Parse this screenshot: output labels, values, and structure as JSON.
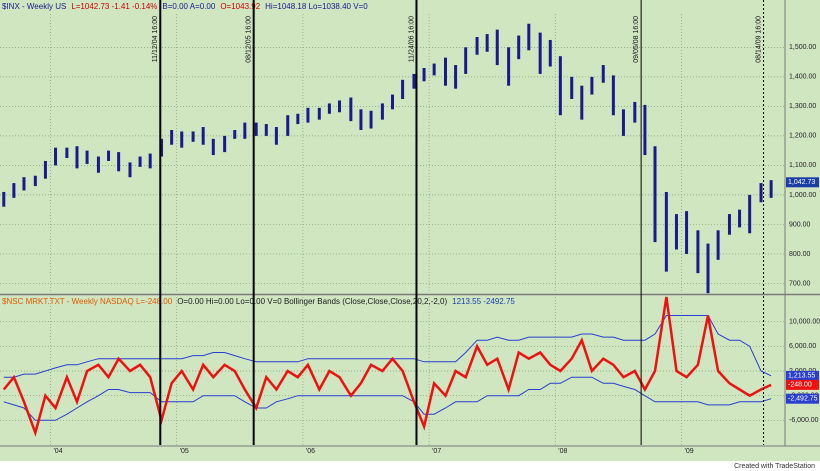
{
  "chart_data": [
    {
      "type": "ohlc",
      "header": [
        {
          "text": "$INX - Weekly  US",
          "color": "#1a1a8c"
        },
        {
          "text": "L=1042.73  -1.41  -0.14%",
          "color": "#cc0000"
        },
        {
          "text": "B=0.00  A=0.00",
          "color": "#1a1a8c"
        },
        {
          "text": "O=1043.92",
          "color": "#cc0000"
        },
        {
          "text": "Hi=1048.18  Lo=1038.40  V=0",
          "color": "#1a1a8c"
        }
      ],
      "color": "#1a1a8c",
      "x": [
        2003.63,
        2003.71,
        2003.79,
        2003.88,
        2003.96,
        2004.04,
        2004.13,
        2004.21,
        2004.29,
        2004.38,
        2004.46,
        2004.54,
        2004.63,
        2004.71,
        2004.79,
        2004.88,
        2004.96,
        2005.04,
        2005.13,
        2005.21,
        2005.29,
        2005.38,
        2005.46,
        2005.54,
        2005.63,
        2005.71,
        2005.79,
        2005.88,
        2005.96,
        2006.04,
        2006.13,
        2006.21,
        2006.29,
        2006.38,
        2006.46,
        2006.54,
        2006.63,
        2006.71,
        2006.79,
        2006.88,
        2006.96,
        2007.04,
        2007.13,
        2007.21,
        2007.29,
        2007.38,
        2007.46,
        2007.54,
        2007.63,
        2007.71,
        2007.79,
        2007.88,
        2007.96,
        2008.04,
        2008.13,
        2008.21,
        2008.29,
        2008.38,
        2008.46,
        2008.54,
        2008.63,
        2008.71,
        2008.79,
        2008.88,
        2008.96,
        2009.04,
        2009.13,
        2009.21,
        2009.29,
        2009.38,
        2009.46,
        2009.54,
        2009.63,
        2009.71
      ],
      "low": [
        960,
        990,
        1015,
        1030,
        1055,
        1100,
        1125,
        1090,
        1105,
        1075,
        1115,
        1080,
        1060,
        1095,
        1090,
        1130,
        1170,
        1160,
        1180,
        1170,
        1135,
        1145,
        1190,
        1190,
        1200,
        1200,
        1170,
        1200,
        1240,
        1245,
        1255,
        1275,
        1280,
        1250,
        1220,
        1225,
        1255,
        1290,
        1325,
        1360,
        1385,
        1405,
        1370,
        1360,
        1410,
        1475,
        1485,
        1440,
        1370,
        1460,
        1490,
        1410,
        1435,
        1270,
        1325,
        1255,
        1340,
        1380,
        1270,
        1200,
        1245,
        1135,
        840,
        740,
        815,
        800,
        735,
        667,
        780,
        865,
        890,
        870,
        975,
        990
      ],
      "high": [
        1010,
        1040,
        1060,
        1065,
        1115,
        1160,
        1160,
        1165,
        1150,
        1130,
        1150,
        1145,
        1110,
        1130,
        1140,
        1190,
        1220,
        1215,
        1215,
        1230,
        1190,
        1200,
        1220,
        1245,
        1245,
        1240,
        1230,
        1270,
        1275,
        1295,
        1295,
        1310,
        1320,
        1330,
        1290,
        1285,
        1310,
        1340,
        1390,
        1410,
        1430,
        1445,
        1465,
        1440,
        1500,
        1535,
        1545,
        1560,
        1500,
        1540,
        1580,
        1550,
        1525,
        1470,
        1400,
        1370,
        1400,
        1440,
        1405,
        1290,
        1315,
        1305,
        1165,
        1010,
        935,
        945,
        880,
        835,
        880,
        935,
        950,
        1000,
        1040,
        1050
      ],
      "last": {
        "value": 1042.73,
        "label": "1,042.73"
      },
      "xlim": [
        2003.6,
        2009.82
      ],
      "ylim": [
        671,
        1613
      ],
      "yticks": [
        {
          "value": 700,
          "label": "700.00"
        },
        {
          "value": 800,
          "label": "800.00"
        },
        {
          "value": 900,
          "label": "900.00"
        },
        {
          "value": 1000,
          "label": "1,000.00"
        },
        {
          "value": 1100,
          "label": "1,100.00"
        },
        {
          "value": 1200,
          "label": "1,200.00"
        },
        {
          "value": 1300,
          "label": "1,300.00"
        },
        {
          "value": 1400,
          "label": "1,400.00"
        },
        {
          "value": 1500,
          "label": "1,500.00"
        }
      ],
      "grid": true,
      "annotations": [
        {
          "text": "11/12/04 16:00",
          "x": 2004.87,
          "style": "thick"
        },
        {
          "text": "08/12/05 16:00",
          "x": 2005.61,
          "style": "thick"
        },
        {
          "text": "11/24/06 16:00",
          "x": 2006.9,
          "style": "thick"
        },
        {
          "text": "09/05/08 16:00",
          "x": 2008.68,
          "style": "thin"
        },
        {
          "text": "08/14/09 16:00",
          "x": 2009.65,
          "style": "dashed"
        }
      ]
    },
    {
      "type": "line",
      "header": [
        {
          "text": "$NSC MRKT.TXT - Weekly  NASDAQ  L=-248.00",
          "color": "#e05a00"
        },
        {
          "text": "O=0.00  Hi=0.00  Lo=0.00  V=0  Bollinger Bands (Close,Close,Close,20,2,-2,0)",
          "color": "#1a1a1a"
        },
        {
          "text": "1213.55  -2492.75",
          "color": "#1a3ea8"
        }
      ],
      "x": [
        2003.63,
        2003.71,
        2003.79,
        2003.88,
        2003.96,
        2004.04,
        2004.13,
        2004.21,
        2004.29,
        2004.38,
        2004.46,
        2004.54,
        2004.63,
        2004.71,
        2004.79,
        2004.88,
        2004.96,
        2005.04,
        2005.13,
        2005.21,
        2005.29,
        2005.38,
        2005.46,
        2005.54,
        2005.63,
        2005.71,
        2005.79,
        2005.88,
        2005.96,
        2006.04,
        2006.13,
        2006.21,
        2006.29,
        2006.38,
        2006.46,
        2006.54,
        2006.63,
        2006.71,
        2006.79,
        2006.88,
        2006.96,
        2007.04,
        2007.13,
        2007.21,
        2007.29,
        2007.38,
        2007.46,
        2007.54,
        2007.63,
        2007.71,
        2007.79,
        2007.88,
        2007.96,
        2008.04,
        2008.13,
        2008.21,
        2008.29,
        2008.38,
        2008.46,
        2008.54,
        2008.63,
        2008.71,
        2008.79,
        2008.88,
        2008.96,
        2009.04,
        2009.13,
        2009.21,
        2009.29,
        2009.38,
        2009.46,
        2009.54,
        2009.63,
        2009.71
      ],
      "series": [
        {
          "color": "#2a3fd0",
          "width": 1,
          "last_label": "1,213.55",
          "values": [
            1000,
            1000,
            1500,
            1500,
            2000,
            2500,
            3000,
            3000,
            3500,
            4000,
            4000,
            4000,
            4000,
            4000,
            4000,
            4000,
            4000,
            4000,
            4500,
            4500,
            5000,
            5000,
            4500,
            4000,
            3500,
            3500,
            3500,
            3500,
            3500,
            4000,
            4000,
            4000,
            4000,
            4000,
            4000,
            4000,
            4000,
            4000,
            4000,
            4000,
            3500,
            3500,
            3500,
            3500,
            5000,
            7000,
            7000,
            7500,
            7000,
            7000,
            7500,
            7500,
            7500,
            7500,
            7500,
            8000,
            8000,
            7500,
            7500,
            7000,
            7000,
            7000,
            8000,
            11000,
            11000,
            11000,
            11000,
            11000,
            8000,
            7000,
            7000,
            6000,
            2000,
            1213.55
          ]
        },
        {
          "color": "#2a3fd0",
          "width": 1,
          "last_label": "-2,492.75",
          "values": [
            -3000,
            -3500,
            -4000,
            -6000,
            -6000,
            -6000,
            -5000,
            -4000,
            -3000,
            -2000,
            -1000,
            -1000,
            -1500,
            -1500,
            -1500,
            -3000,
            -3000,
            -3000,
            -3000,
            -2000,
            -2000,
            -2000,
            -2000,
            -3000,
            -4000,
            -4000,
            -3000,
            -2500,
            -2000,
            -2000,
            -2000,
            -2000,
            -2000,
            -2000,
            -2000,
            -2000,
            -2000,
            -2000,
            -2000,
            -3000,
            -5000,
            -5000,
            -4000,
            -3000,
            -3000,
            -3000,
            -2000,
            -2000,
            -2000,
            -2000,
            -1000,
            -1000,
            0,
            0,
            1000,
            1000,
            1000,
            0,
            0,
            -500,
            -1000,
            -2000,
            -3000,
            -3000,
            -3000,
            -3000,
            -3000,
            -3500,
            -3500,
            -3500,
            -3000,
            -3000,
            -3000,
            -2492.75
          ]
        },
        {
          "color": "#ee1111",
          "width": 2.5,
          "last_label": "-248.00",
          "values": [
            -1000,
            1000,
            -3000,
            -8000,
            -2000,
            -4000,
            1000,
            -3000,
            2000,
            3000,
            1000,
            4000,
            2000,
            3000,
            1000,
            -6000,
            0,
            2000,
            -1000,
            3000,
            1000,
            3000,
            2000,
            -1000,
            -4000,
            1000,
            -1000,
            2000,
            1000,
            3000,
            -1000,
            2000,
            1000,
            -2000,
            0,
            3000,
            2000,
            4000,
            2000,
            -3000,
            -7000,
            0,
            -2000,
            2000,
            1000,
            6000,
            3000,
            4000,
            -1000,
            5000,
            4000,
            5000,
            3000,
            2000,
            4000,
            7000,
            2000,
            4000,
            3000,
            1000,
            2000,
            -1000,
            2000,
            14000,
            2000,
            1000,
            3000,
            11000,
            2000,
            0,
            -1000,
            -2000,
            -1000,
            -248
          ]
        }
      ],
      "xlim": [
        2003.6,
        2009.82
      ],
      "ylim": [
        -10000,
        14000
      ],
      "yticks": [
        {
          "value": -6000,
          "label": "-6,000.00"
        },
        {
          "value": -2000,
          "label": "-2,000.00"
        },
        {
          "value": 2000,
          "label": "2,000.00"
        },
        {
          "value": 6000,
          "label": "6,000.00"
        },
        {
          "value": 10000,
          "label": "10,000.00"
        }
      ],
      "xticks": [
        {
          "value": 2004,
          "label": "'04"
        },
        {
          "value": 2005,
          "label": "'05"
        },
        {
          "value": 2006,
          "label": "'06"
        },
        {
          "value": 2007,
          "label": "'07"
        },
        {
          "value": 2008,
          "label": "'08"
        },
        {
          "value": 2009,
          "label": "'09"
        }
      ],
      "grid": true
    }
  ],
  "footer": "Created with TradeStation"
}
